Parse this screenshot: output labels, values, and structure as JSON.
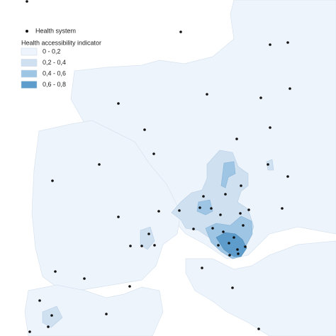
{
  "legend": {
    "points_label": "Health system",
    "title": "Health accessibility indicator",
    "classes": [
      {
        "label": "0 - 0,2",
        "color": "#eef4fb"
      },
      {
        "label": "0,2 - 0,4",
        "color": "#cfe0f1"
      },
      {
        "label": "0,4 - 0,6",
        "color": "#9ec5e3"
      },
      {
        "label": "0,6 - 0,8",
        "color": "#5e9ccb"
      }
    ]
  }
}
